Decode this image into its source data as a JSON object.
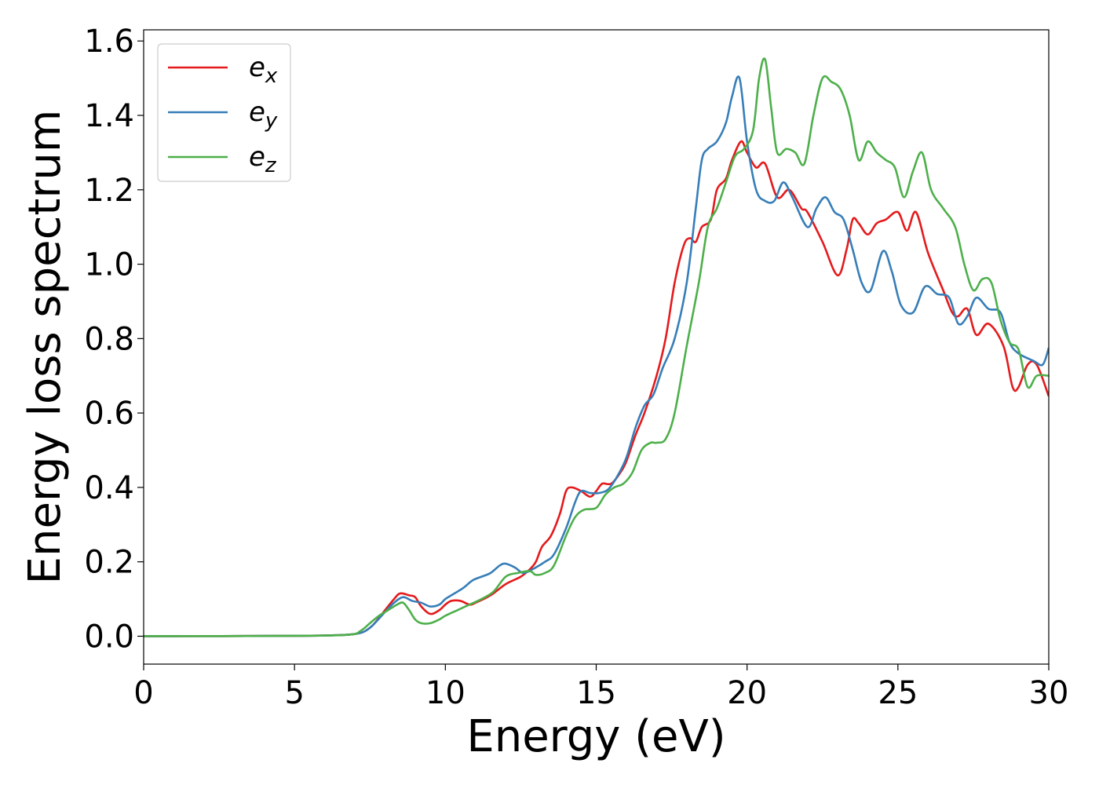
{
  "chart_data": {
    "type": "line",
    "xlabel": "Energy (eV)",
    "ylabel": "Energy loss spectrum",
    "xlim": [
      0,
      30
    ],
    "ylim": [
      -0.075,
      1.63
    ],
    "xticks": [
      0,
      5,
      10,
      15,
      20,
      25,
      30
    ],
    "yticks": [
      0.0,
      0.2,
      0.4,
      0.6,
      0.8,
      1.0,
      1.2,
      1.4,
      1.6
    ],
    "xtick_labels": [
      "0",
      "5",
      "10",
      "15",
      "20",
      "25",
      "30"
    ],
    "ytick_labels": [
      "0.0",
      "0.2",
      "0.4",
      "0.6",
      "0.8",
      "1.0",
      "1.2",
      "1.4",
      "1.6"
    ],
    "grid": false,
    "legend_position": "top-left",
    "series": [
      {
        "name": "e",
        "subscript": "x",
        "color": "#e41a1c",
        "x": [
          0,
          5,
          6.5,
          7.0,
          7.3,
          7.6,
          8.0,
          8.3,
          8.5,
          8.8,
          9.0,
          9.2,
          9.5,
          9.8,
          10.0,
          10.2,
          10.5,
          10.8,
          11.0,
          11.5,
          12.0,
          12.5,
          12.8,
          13.0,
          13.2,
          13.5,
          13.8,
          14.0,
          14.2,
          14.5,
          14.8,
          15.0,
          15.2,
          15.5,
          15.8,
          16.0,
          16.3,
          16.6,
          17.0,
          17.3,
          17.6,
          17.9,
          18.1,
          18.3,
          18.5,
          18.8,
          19.0,
          19.3,
          19.5,
          19.8,
          20.0,
          20.3,
          20.6,
          21.0,
          21.4,
          21.8,
          22.0,
          22.5,
          23.0,
          23.3,
          23.5,
          23.7,
          24.0,
          24.3,
          24.6,
          25.0,
          25.3,
          25.6,
          26.0,
          26.5,
          26.8,
          27.0,
          27.3,
          27.6,
          28.0,
          28.5,
          28.8,
          29.0,
          29.3,
          29.6,
          30.0
        ],
        "y": [
          0.0,
          0.001,
          0.003,
          0.006,
          0.012,
          0.03,
          0.07,
          0.1,
          0.115,
          0.11,
          0.105,
          0.08,
          0.06,
          0.07,
          0.085,
          0.095,
          0.095,
          0.085,
          0.09,
          0.11,
          0.14,
          0.16,
          0.18,
          0.2,
          0.24,
          0.27,
          0.33,
          0.39,
          0.4,
          0.39,
          0.375,
          0.39,
          0.41,
          0.41,
          0.44,
          0.47,
          0.54,
          0.6,
          0.7,
          0.8,
          0.95,
          1.05,
          1.07,
          1.06,
          1.1,
          1.12,
          1.2,
          1.23,
          1.28,
          1.33,
          1.3,
          1.26,
          1.27,
          1.18,
          1.2,
          1.15,
          1.14,
          1.06,
          0.97,
          1.04,
          1.12,
          1.11,
          1.08,
          1.11,
          1.12,
          1.14,
          1.09,
          1.14,
          1.03,
          0.93,
          0.87,
          0.86,
          0.88,
          0.81,
          0.84,
          0.78,
          0.67,
          0.67,
          0.73,
          0.73,
          0.645
        ]
      },
      {
        "name": "e",
        "subscript": "y",
        "color": "#377eb8",
        "x": [
          0,
          5,
          6.5,
          7.0,
          7.3,
          7.6,
          8.0,
          8.3,
          8.6,
          8.9,
          9.2,
          9.5,
          9.8,
          10.0,
          10.3,
          10.6,
          10.9,
          11.2,
          11.5,
          11.8,
          12.0,
          12.3,
          12.6,
          13.0,
          13.3,
          13.6,
          14.0,
          14.3,
          14.5,
          14.8,
          15.1,
          15.4,
          15.7,
          16.0,
          16.3,
          16.6,
          16.9,
          17.2,
          17.6,
          18.0,
          18.3,
          18.5,
          18.7,
          19.0,
          19.3,
          19.5,
          19.75,
          20.0,
          20.3,
          20.6,
          20.9,
          21.2,
          21.5,
          22.0,
          22.3,
          22.6,
          22.9,
          23.2,
          23.5,
          23.8,
          24.1,
          24.5,
          24.8,
          25.1,
          25.5,
          25.9,
          26.3,
          26.7,
          27.0,
          27.3,
          27.6,
          28.0,
          28.4,
          28.7,
          29.0,
          29.5,
          29.8,
          30.0
        ],
        "y": [
          0.0,
          0.001,
          0.003,
          0.006,
          0.012,
          0.03,
          0.065,
          0.09,
          0.105,
          0.095,
          0.09,
          0.08,
          0.085,
          0.1,
          0.115,
          0.13,
          0.15,
          0.16,
          0.17,
          0.19,
          0.195,
          0.185,
          0.17,
          0.185,
          0.2,
          0.22,
          0.29,
          0.36,
          0.39,
          0.385,
          0.385,
          0.395,
          0.43,
          0.48,
          0.56,
          0.62,
          0.65,
          0.72,
          0.8,
          0.95,
          1.15,
          1.28,
          1.31,
          1.33,
          1.38,
          1.45,
          1.5,
          1.33,
          1.2,
          1.17,
          1.17,
          1.22,
          1.18,
          1.1,
          1.15,
          1.18,
          1.14,
          1.12,
          1.04,
          0.95,
          0.93,
          1.035,
          0.98,
          0.89,
          0.87,
          0.94,
          0.92,
          0.91,
          0.84,
          0.86,
          0.91,
          0.88,
          0.87,
          0.79,
          0.76,
          0.74,
          0.73,
          0.775
        ]
      },
      {
        "name": "e",
        "subscript": "z",
        "color": "#4daf4a",
        "x": [
          0,
          5,
          6.8,
          7.2,
          7.5,
          7.8,
          8.1,
          8.4,
          8.6,
          8.8,
          9.0,
          9.2,
          9.5,
          9.8,
          10.0,
          10.4,
          10.8,
          11.2,
          11.6,
          12.0,
          12.4,
          12.8,
          13.0,
          13.3,
          13.6,
          14.0,
          14.3,
          14.6,
          15.0,
          15.3,
          15.6,
          15.9,
          16.2,
          16.5,
          16.8,
          17.0,
          17.3,
          17.6,
          18.0,
          18.4,
          18.7,
          19.0,
          19.3,
          19.6,
          19.9,
          20.2,
          20.4,
          20.6,
          20.8,
          21.0,
          21.3,
          21.6,
          21.9,
          22.2,
          22.5,
          22.8,
          23.1,
          23.4,
          23.7,
          24.0,
          24.3,
          24.6,
          24.9,
          25.2,
          25.5,
          25.8,
          26.1,
          26.5,
          26.9,
          27.2,
          27.5,
          27.8,
          28.1,
          28.4,
          28.7,
          29.0,
          29.3,
          29.6,
          30.0
        ],
        "y": [
          0.0,
          0.001,
          0.004,
          0.015,
          0.035,
          0.055,
          0.07,
          0.085,
          0.09,
          0.07,
          0.045,
          0.035,
          0.035,
          0.045,
          0.055,
          0.07,
          0.085,
          0.1,
          0.12,
          0.16,
          0.17,
          0.175,
          0.165,
          0.17,
          0.19,
          0.27,
          0.32,
          0.34,
          0.345,
          0.38,
          0.4,
          0.41,
          0.44,
          0.5,
          0.52,
          0.52,
          0.53,
          0.6,
          0.78,
          0.95,
          1.1,
          1.15,
          1.22,
          1.29,
          1.31,
          1.36,
          1.5,
          1.55,
          1.42,
          1.3,
          1.31,
          1.3,
          1.27,
          1.4,
          1.5,
          1.49,
          1.47,
          1.4,
          1.28,
          1.33,
          1.3,
          1.28,
          1.26,
          1.18,
          1.25,
          1.3,
          1.2,
          1.15,
          1.1,
          1.0,
          0.93,
          0.96,
          0.95,
          0.85,
          0.79,
          0.77,
          0.67,
          0.7,
          0.7
        ]
      }
    ]
  }
}
